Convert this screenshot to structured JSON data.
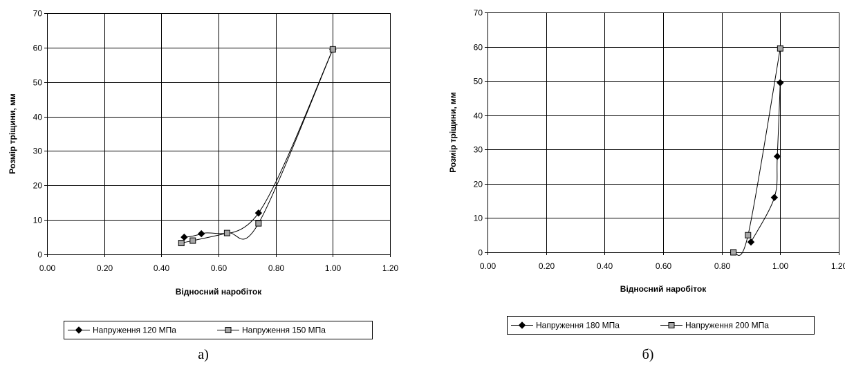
{
  "chart_data": [
    {
      "type": "line",
      "panel_label": "а)",
      "xlabel": "Відносний наробіток",
      "ylabel": "Розмір тріщини, мм",
      "xlim": [
        0,
        1.2
      ],
      "ylim": [
        0,
        70
      ],
      "x_ticks": [
        "0.00",
        "0.20",
        "0.40",
        "0.60",
        "0.80",
        "1.00",
        "1.20"
      ],
      "y_ticks": [
        "0",
        "10",
        "20",
        "30",
        "40",
        "50",
        "60",
        "70"
      ],
      "grid": true,
      "legend_position": "bottom",
      "series": [
        {
          "name": "Напруження 120 МПа",
          "marker": "diamond",
          "color": "#000000",
          "points": [
            [
              0.48,
              5
            ],
            [
              0.54,
              6
            ],
            [
              0.74,
              12
            ],
            [
              1.0,
              59.5
            ]
          ]
        },
        {
          "name": "Напруження 150 МПа",
          "marker": "square",
          "color": "#000000",
          "marker_fill": "#a6a6a6",
          "points": [
            [
              0.47,
              3.3
            ],
            [
              0.51,
              4
            ],
            [
              0.63,
              6.2
            ],
            [
              0.74,
              9
            ],
            [
              1.0,
              59.5
            ]
          ]
        }
      ]
    },
    {
      "type": "line",
      "panel_label": "б)",
      "xlabel": "Відносний наробіток",
      "ylabel": "Розмір тріщини, мм",
      "xlim": [
        0,
        1.2
      ],
      "ylim": [
        0,
        70
      ],
      "x_ticks": [
        "0.00",
        "0.20",
        "0.40",
        "0.60",
        "0.80",
        "1.00",
        "1.20"
      ],
      "y_ticks": [
        "0",
        "10",
        "20",
        "30",
        "40",
        "50",
        "60",
        "70"
      ],
      "grid": true,
      "legend_position": "bottom",
      "series": [
        {
          "name": "Напруження 180 МПа",
          "marker": "diamond",
          "color": "#000000",
          "points": [
            [
              0.9,
              3
            ],
            [
              0.98,
              16
            ],
            [
              0.99,
              28
            ],
            [
              1.0,
              49.5
            ]
          ]
        },
        {
          "name": "Напруження 200 МПа",
          "marker": "square",
          "color": "#000000",
          "marker_fill": "#a6a6a6",
          "points": [
            [
              0.84,
              0
            ],
            [
              0.89,
              5
            ],
            [
              1.0,
              59.5
            ]
          ]
        }
      ]
    }
  ]
}
